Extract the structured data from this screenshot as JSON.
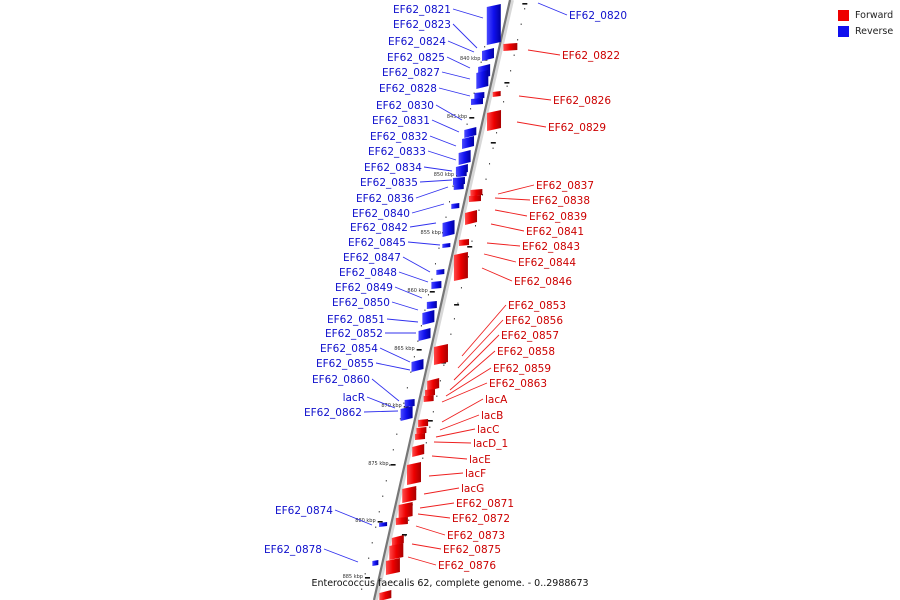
{
  "caption": "Enterococcus faecalis 62, complete genome. - 0..2988673",
  "legend": [
    {
      "label": "Forward",
      "color": "#ee0000"
    },
    {
      "label": "Reverse",
      "color": "#1010ee"
    }
  ],
  "kbp_ticks": [
    "840 kbp",
    "845 kbp",
    "850 kbp",
    "855 kbp",
    "860 kbp",
    "865 kbp",
    "870 kbp",
    "875 kbp",
    "880 kbp",
    "885 kbp"
  ],
  "reverse_genes": [
    "EF62_0821",
    "EF62_0823",
    "EF62_0824",
    "EF62_0825",
    "EF62_0827",
    "EF62_0828",
    "EF62_0830",
    "EF62_0831",
    "EF62_0832",
    "EF62_0833",
    "EF62_0834",
    "EF62_0835",
    "EF62_0836",
    "EF62_0840",
    "EF62_0842",
    "EF62_0845",
    "EF62_0847",
    "EF62_0848",
    "EF62_0849",
    "EF62_0850",
    "EF62_0851",
    "EF62_0852",
    "EF62_0854",
    "EF62_0855",
    "EF62_0860",
    "lacR",
    "EF62_0862",
    "EF62_0874",
    "EF62_0878",
    "EF62_0820"
  ],
  "forward_genes": [
    "EF62_0822",
    "EF62_0826",
    "EF62_0829",
    "EF62_0837",
    "EF62_0838",
    "EF62_0839",
    "EF62_0841",
    "EF62_0843",
    "EF62_0844",
    "EF62_0846",
    "EF62_0853",
    "EF62_0856",
    "EF62_0857",
    "EF62_0858",
    "EF62_0859",
    "EF62_0863",
    "lacA",
    "lacB",
    "lacC",
    "lacD_1",
    "lacE",
    "lacF",
    "lacG",
    "EF62_0871",
    "EF62_0872",
    "EF62_0873",
    "EF62_0875",
    "EF62_0876"
  ]
}
